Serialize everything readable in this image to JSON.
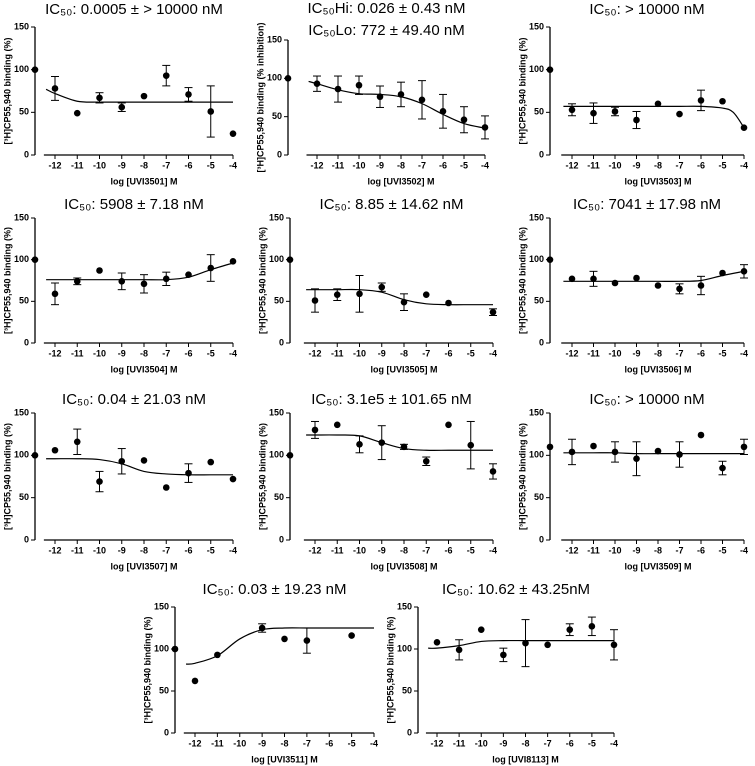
{
  "chart_data": [
    {
      "type": "dose-response",
      "title": "IC₅₀: 0.0005 ± > 10000 nM",
      "y_label": "[³H]CP55,940 binding (%)",
      "x_label": "log [UVI3501] M",
      "control": 100,
      "x": [
        -12,
        -11,
        -10,
        -9,
        -8,
        -7,
        -6,
        -5,
        -4
      ],
      "values": [
        78,
        49,
        67,
        56,
        69,
        93,
        71,
        51,
        25
      ],
      "errors": [
        14,
        null,
        6,
        5,
        null,
        12,
        8,
        30,
        null
      ],
      "fit": {
        "x": [
          -12.4,
          -12,
          -11,
          -10,
          -9,
          -8,
          -7,
          -6,
          -5,
          -4
        ],
        "values": [
          77,
          72,
          63,
          62,
          62,
          62,
          62,
          62,
          62,
          62
        ]
      },
      "xlim": [
        -12.5,
        -4
      ],
      "ylim": [
        0,
        150
      ],
      "xticks": [
        -12,
        -11,
        -10,
        -9,
        -8,
        -7,
        -6,
        -5,
        -4
      ],
      "yticks": [
        0,
        50,
        100,
        150
      ]
    },
    {
      "type": "dose-response",
      "title": "IC₅₀Hi: 0.026 ± 0.43 nM",
      "subtitle": "IC₅₀Lo: 772 ± 49.40 nM",
      "y_label": "[³H]CP55,940 binding (% inhibition)",
      "x_label": "log [UVI3502] M",
      "control": 100,
      "x": [
        -12,
        -11,
        -10,
        -9,
        -8,
        -7,
        -6,
        -5,
        -4
      ],
      "values": [
        93,
        86,
        91,
        76,
        79,
        72,
        57,
        46,
        36
      ],
      "errors": [
        10,
        17,
        12,
        14,
        16,
        25,
        22,
        17,
        15
      ],
      "fit": {
        "x": [
          -12.4,
          -12,
          -11,
          -10,
          -9,
          -8,
          -7,
          -6,
          -5,
          -4
        ],
        "values": [
          96,
          93,
          85,
          80,
          79,
          76,
          67,
          53,
          41,
          35
        ]
      },
      "xlim": [
        -12.5,
        -4
      ],
      "ylim": [
        0,
        150
      ],
      "xticks": [
        -12,
        -11,
        -10,
        -9,
        -8,
        -7,
        -6,
        -5,
        -4
      ],
      "yticks": [
        0,
        50,
        100,
        150
      ]
    },
    {
      "type": "dose-response",
      "title": "IC₅₀: > 10000 nM",
      "y_label": "[³H]CP55,940 binding (%)",
      "x_label": "log [UVI3503] M",
      "control": 100,
      "x": [
        -12,
        -11,
        -10,
        -9,
        -8,
        -7,
        -6,
        -5,
        -4
      ],
      "values": [
        53,
        49,
        51,
        41,
        60,
        48,
        64,
        63,
        32
      ],
      "errors": [
        7,
        12,
        5,
        10,
        null,
        null,
        12,
        null,
        null
      ],
      "fit": {
        "x": [
          -12.4,
          -12,
          -11,
          -10,
          -9,
          -8,
          -7,
          -6,
          -5,
          -4.5,
          -4
        ],
        "values": [
          57,
          57,
          57,
          57,
          57,
          57,
          57,
          57,
          55,
          50,
          32
        ]
      },
      "xlim": [
        -12.5,
        -4
      ],
      "ylim": [
        0,
        150
      ],
      "xticks": [
        -12,
        -11,
        -10,
        -9,
        -8,
        -7,
        -6,
        -5,
        -4
      ],
      "yticks": [
        0,
        50,
        100,
        150
      ]
    },
    {
      "type": "dose-response",
      "title": "IC₅₀: 5908 ± 7.18 nM",
      "y_label": "[³H]CP55,940 binding (%)",
      "x_label": "log [UVI3504] M",
      "control": 100,
      "x": [
        -12,
        -11,
        -10,
        -9,
        -8,
        -7,
        -6,
        -5,
        -4
      ],
      "values": [
        59,
        74,
        87,
        74,
        71,
        77,
        82,
        90,
        98
      ],
      "errors": [
        13,
        4,
        null,
        10,
        11,
        8,
        null,
        16,
        null
      ],
      "fit": {
        "x": [
          -12.4,
          -12,
          -11,
          -10,
          -9,
          -8,
          -7,
          -6,
          -5,
          -4
        ],
        "values": [
          76,
          76,
          76,
          76,
          76,
          76,
          76,
          79,
          88,
          96
        ]
      },
      "xlim": [
        -12.5,
        -4
      ],
      "ylim": [
        0,
        150
      ],
      "xticks": [
        -12,
        -11,
        -10,
        -9,
        -8,
        -7,
        -6,
        -5,
        -4
      ],
      "yticks": [
        0,
        50,
        100,
        150
      ]
    },
    {
      "type": "dose-response",
      "title": "IC₅₀: 8.85 ± 14.62 nM",
      "y_label": "[³H]CP55,940 binding (%)",
      "x_label": "log [UVI3505] M",
      "control": 100,
      "x": [
        -12,
        -11,
        -10,
        -9,
        -8,
        -7,
        -6,
        -5,
        -4
      ],
      "values": [
        51,
        58,
        59,
        67,
        49,
        58,
        48,
        null,
        37
      ],
      "errors": [
        14,
        7,
        22,
        5,
        10,
        null,
        null,
        null,
        4
      ],
      "fit": {
        "x": [
          -12.4,
          -12,
          -11,
          -10,
          -9,
          -8,
          -7,
          -6,
          -5,
          -4
        ],
        "values": [
          64,
          64,
          64,
          64,
          61,
          52,
          47,
          46,
          46,
          46
        ]
      },
      "xlim": [
        -12.5,
        -4
      ],
      "ylim": [
        0,
        150
      ],
      "xticks": [
        -12,
        -11,
        -10,
        -9,
        -8,
        -7,
        -6,
        -5,
        -4
      ],
      "yticks": [
        0,
        50,
        100,
        150
      ]
    },
    {
      "type": "dose-response",
      "title": "IC₅₀: 7041 ± 17.98 nM",
      "y_label": "[³H]CP55,940 binding (%)",
      "x_label": "log [UVI3506] M",
      "control": 100,
      "x": [
        -12,
        -11,
        -10,
        -9,
        -8,
        -7,
        -6,
        -5,
        -4
      ],
      "values": [
        77,
        77,
        72,
        78,
        69,
        65,
        69,
        84,
        86
      ],
      "errors": [
        null,
        9,
        null,
        null,
        null,
        6,
        11,
        null,
        8
      ],
      "fit": {
        "x": [
          -12.4,
          -12,
          -11,
          -10,
          -9,
          -8,
          -7,
          -6,
          -5,
          -4
        ],
        "values": [
          74,
          74,
          74,
          74,
          74,
          74,
          74,
          75,
          81,
          86
        ]
      },
      "xlim": [
        -12.5,
        -4
      ],
      "ylim": [
        0,
        150
      ],
      "xticks": [
        -12,
        -11,
        -10,
        -9,
        -8,
        -7,
        -6,
        -5,
        -4
      ],
      "yticks": [
        0,
        50,
        100,
        150
      ]
    },
    {
      "type": "dose-response",
      "title": "IC₅₀: 0.04 ± 21.03 nM",
      "y_label": "[³H]CP55,940 binding (%)",
      "x_label": "log [UVI3507] M",
      "control": 100,
      "x": [
        -12,
        -11,
        -10,
        -9,
        -8,
        -7,
        -6,
        -5,
        -4
      ],
      "values": [
        106,
        116,
        69,
        93,
        94,
        62,
        79,
        92,
        72
      ],
      "errors": [
        null,
        15,
        12,
        15,
        null,
        null,
        11,
        null,
        null
      ],
      "fit": {
        "x": [
          -12.4,
          -12,
          -11,
          -10,
          -9,
          -8,
          -7,
          -6,
          -5,
          -4
        ],
        "values": [
          96,
          96,
          96,
          95,
          90,
          81,
          78,
          77,
          77,
          77
        ]
      },
      "xlim": [
        -12.5,
        -4
      ],
      "ylim": [
        0,
        150
      ],
      "xticks": [
        -12,
        -11,
        -10,
        -9,
        -8,
        -7,
        -6,
        -5,
        -4
      ],
      "yticks": [
        0,
        50,
        100,
        150
      ]
    },
    {
      "type": "dose-response",
      "title": "IC₅₀: 3.1e5 ± 101.65 nM",
      "y_label": "[³H]CP55,940 binding (%)",
      "x_label": "log [UVI3508] M",
      "control": 100,
      "x": [
        -12,
        -11,
        -10,
        -9,
        -8,
        -7,
        -6,
        -5,
        -4
      ],
      "values": [
        130,
        136,
        113,
        115,
        110,
        93,
        136,
        112,
        81
      ],
      "errors": [
        10,
        null,
        10,
        20,
        3,
        5,
        null,
        28,
        9
      ],
      "fit": {
        "x": [
          -12.4,
          -12,
          -11,
          -10,
          -9,
          -8,
          -7,
          -6,
          -5,
          -4
        ],
        "values": [
          124,
          124,
          124,
          123,
          115,
          108,
          106,
          106,
          106,
          106
        ]
      },
      "xlim": [
        -12.5,
        -4
      ],
      "ylim": [
        0,
        150
      ],
      "xticks": [
        -12,
        -11,
        -10,
        -9,
        -8,
        -7,
        -6,
        -5,
        -4
      ],
      "yticks": [
        0,
        50,
        100,
        150
      ]
    },
    {
      "type": "dose-response",
      "title": "IC₅₀: > 10000 nM",
      "y_label": "[³H]CP55,940 binding (%)",
      "x_label": "log [UVI3509] M",
      "control": 110,
      "x": [
        -12,
        -11,
        -10,
        -9,
        -8,
        -7,
        -6,
        -5,
        -4
      ],
      "values": [
        104,
        111,
        104,
        96,
        105,
        101,
        124,
        85,
        110
      ],
      "errors": [
        15,
        null,
        12,
        20,
        null,
        15,
        null,
        8,
        9
      ],
      "fit": {
        "x": [
          -12.4,
          -12,
          -11,
          -10,
          -9,
          -8,
          -7,
          -6,
          -5,
          -4
        ],
        "values": [
          103,
          103,
          103,
          103,
          102,
          102,
          102,
          102,
          102,
          102
        ]
      },
      "xlim": [
        -12.5,
        -4
      ],
      "ylim": [
        0,
        150
      ],
      "xticks": [
        -12,
        -11,
        -10,
        -9,
        -8,
        -7,
        -6,
        -5,
        -4
      ],
      "yticks": [
        0,
        50,
        100,
        150
      ]
    },
    {
      "type": "dose-response",
      "title": "IC₅₀: 0.03 ± 19.23 nM",
      "y_label": "[³H]CP55,940 binding (%)",
      "x_label": "log [UVI3511] M",
      "control": 100,
      "x": [
        -12,
        -11,
        -10,
        -9,
        -8,
        -7,
        -6,
        -5,
        -4
      ],
      "values": [
        62,
        93,
        null,
        125,
        112,
        110,
        null,
        116,
        null
      ],
      "errors": [
        null,
        null,
        null,
        5,
        null,
        15,
        null,
        null,
        null
      ],
      "fit": {
        "x": [
          -12.4,
          -12,
          -11,
          -10,
          -9,
          -8,
          -7,
          -6,
          -5,
          -4
        ],
        "values": [
          82,
          83,
          92,
          112,
          123,
          125,
          125,
          125,
          125,
          125
        ]
      },
      "xlim": [
        -12.5,
        -4
      ],
      "ylim": [
        0,
        150
      ],
      "xticks": [
        -12,
        -11,
        -10,
        -9,
        -8,
        -7,
        -6,
        -5,
        -4
      ],
      "yticks": [
        0,
        50,
        100,
        150
      ]
    },
    {
      "type": "dose-response",
      "title": "IC₅₀: 10.62 ± 43.25nM",
      "y_label": "[³H]CP55,940 binding (%)",
      "x_label": "log [UVI8113] M",
      "control": null,
      "x": [
        -12,
        -11,
        -10,
        -9,
        -8,
        -7,
        -6,
        -5,
        -4
      ],
      "values": [
        108,
        99,
        123,
        93,
        107,
        105,
        123,
        127,
        105
      ],
      "errors": [
        null,
        12,
        null,
        8,
        28,
        null,
        7,
        11,
        18
      ],
      "fit": {
        "x": [
          -12.4,
          -12,
          -11,
          -10,
          -9,
          -8,
          -7,
          -6,
          -5,
          -4
        ],
        "values": [
          101,
          101,
          104,
          109,
          110,
          110,
          110,
          110,
          110,
          110
        ]
      },
      "xlim": [
        -12.5,
        -4
      ],
      "ylim": [
        0,
        150
      ],
      "xticks": [
        -12,
        -11,
        -10,
        -9,
        -8,
        -7,
        -6,
        -5,
        -4
      ],
      "yticks": [
        0,
        50,
        100,
        150
      ]
    }
  ]
}
